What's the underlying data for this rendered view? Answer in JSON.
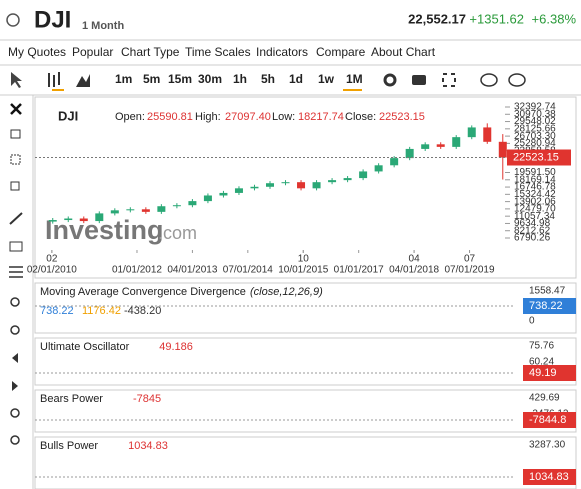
{
  "header": {
    "symbol": "DJI",
    "period": "1 Month",
    "price": "22,552.17",
    "change": "+1351.62",
    "change_pct": "+6.38%"
  },
  "menu": [
    "My Quotes",
    "Popular",
    "Chart Type",
    "Time Scales",
    "Indicators",
    "Compare",
    "About Chart"
  ],
  "timeframes": [
    "1m",
    "5m",
    "15m",
    "30m",
    "1h",
    "5h",
    "1d",
    "1w",
    "1M"
  ],
  "chart_data": {
    "type": "candlestick",
    "legend": {
      "symbol": "DJI",
      "open_label": "Open:",
      "open": "25590.81",
      "high_label": "High:",
      "high": "27097.40",
      "low_label": "Low:",
      "low": "18217.74",
      "close_label": "Close:",
      "close": "22523.15"
    },
    "watermark": [
      "Investing",
      ".com"
    ],
    "x": [
      2010.1,
      2010.45,
      2010.8,
      2011.15,
      2011.5,
      2011.85,
      2012.2,
      2012.55,
      2012.9,
      2013.25,
      2013.6,
      2013.95,
      2014.3,
      2014.65,
      2015.0,
      2015.35,
      2015.7,
      2016.05,
      2016.4,
      2016.75,
      2017.1,
      2017.45,
      2017.8,
      2018.15,
      2018.5,
      2018.85,
      2019.2,
      2019.55,
      2019.9,
      2020.25
    ],
    "open": [
      10000,
      10300,
      10600,
      10100,
      11600,
      12200,
      12400,
      11900,
      13000,
      13200,
      14000,
      15100,
      15600,
      16500,
      16800,
      17500,
      17700,
      16500,
      17700,
      18100,
      18500,
      19800,
      21000,
      22400,
      24200,
      25100,
      24600,
      26500,
      28400,
      25590.81
    ],
    "high": [
      10700,
      11000,
      11000,
      12000,
      12600,
      12800,
      12800,
      13400,
      13600,
      14400,
      15500,
      16000,
      16900,
      17200,
      17900,
      18100,
      18100,
      18100,
      18500,
      18900,
      20200,
      21400,
      22800,
      24600,
      25500,
      25500,
      26900,
      28800,
      29200,
      27097.4
    ],
    "low": [
      9600,
      9900,
      9700,
      9700,
      11200,
      11800,
      11500,
      11500,
      12600,
      12800,
      13600,
      14700,
      15200,
      16100,
      16400,
      17100,
      16100,
      16100,
      17300,
      17700,
      18100,
      19400,
      20600,
      22000,
      23800,
      24200,
      24200,
      26100,
      25190.81,
      18217.74
    ],
    "close": [
      10300,
      10600,
      10100,
      11600,
      12200,
      12400,
      11900,
      13000,
      13200,
      14000,
      15100,
      15600,
      16500,
      16800,
      17500,
      17700,
      16500,
      17700,
      18100,
      18500,
      19800,
      21000,
      22400,
      24200,
      25100,
      24600,
      26500,
      28400,
      25590.81,
      22523.15
    ],
    "xlim": [
      2009.7,
      2020.3
    ],
    "xticks": [
      {
        "value": 2010.08,
        "label": "02/01/2010"
      },
      {
        "value": 2012.0,
        "label": "01/01/2012"
      },
      {
        "value": 2013.25,
        "label": "04/01/2013"
      },
      {
        "value": 2014.5,
        "label": "07/01/2014"
      },
      {
        "value": 2015.75,
        "label": "10/01/2015"
      },
      {
        "value": 2017.0,
        "label": "01/01/2017"
      },
      {
        "value": 2018.25,
        "label": "04/01/2018"
      },
      {
        "value": 2019.5,
        "label": "07/01/2019"
      }
    ],
    "xticks_top": [
      {
        "value": 2010.08,
        "label": "02"
      },
      {
        "value": 2015.75,
        "label": "10"
      },
      {
        "value": 2018.25,
        "label": "04"
      },
      {
        "value": 2019.5,
        "label": "07"
      }
    ],
    "ylim": [
      6790.26,
      32392.74
    ],
    "yticks": [
      32392.74,
      30970.38,
      29548.02,
      28125.66,
      {
        "value": 26703.3,
        "label": "26703.30"
      },
      25280.94,
      23858.58,
      {
        "value": 19591.5,
        "label": "19591.50"
      },
      18169.14,
      16746.78,
      15324.42,
      13902.06,
      {
        "value": 12479.7,
        "label": "12479.70"
      },
      11057.34,
      9634.98,
      8212.62,
      6790.26
    ],
    "last_price_label": "22523.15",
    "color_up": "#2aa876",
    "color_down": "#e0342f"
  },
  "indicators": [
    {
      "title": "Moving Average Convergence Divergence",
      "params": "(close,12,26,9)",
      "values": [
        "738.22",
        "1176.42",
        "-438.20"
      ],
      "axis": [
        "1558.47",
        "0"
      ],
      "badge": "738.22",
      "badge_color": "#2f7fd8"
    },
    {
      "title": "Ultimate Oscillator",
      "values": [
        "49.186"
      ],
      "axis": [
        "75.76",
        "60.24"
      ],
      "badge": "49.19",
      "badge_color": "#e0342f"
    },
    {
      "title": "Bears Power",
      "values": [
        "-7845"
      ],
      "axis": [
        "429.69",
        "-3476.12"
      ],
      "badge": "-7844.8",
      "badge_color": "#e0342f"
    },
    {
      "title": "Bulls Power",
      "values": [
        "1034.83"
      ],
      "axis": [
        "3287.30"
      ],
      "badge": "1034.83",
      "badge_color": "#e0342f"
    }
  ]
}
